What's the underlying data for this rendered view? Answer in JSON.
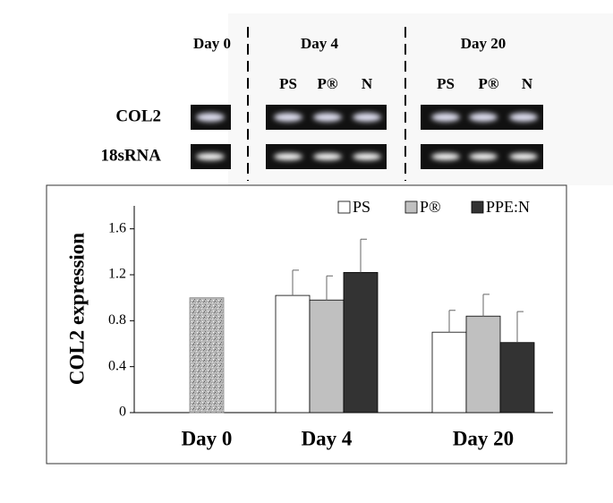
{
  "gel": {
    "groups": [
      "Day 0",
      "Day 4",
      "Day 20"
    ],
    "lane_labels": [
      "PS",
      "P®",
      "N",
      "PS",
      "P®",
      "N"
    ],
    "rows": [
      "COL2",
      "18sRNA"
    ]
  },
  "chart_data": {
    "type": "bar",
    "ylabel": "COL2 expression",
    "categories": [
      "Day 0",
      "Day 4",
      "Day 20"
    ],
    "control_values": [
      1.0,
      null,
      null
    ],
    "series": [
      {
        "name": "PS",
        "color": "#ffffff",
        "values": [
          null,
          1.02,
          0.7
        ],
        "errors": [
          null,
          0.22,
          0.19
        ]
      },
      {
        "name": "P®",
        "color": "#c0c0c0",
        "values": [
          null,
          0.98,
          0.84
        ],
        "errors": [
          null,
          0.21,
          0.19
        ]
      },
      {
        "name": "PPE:N",
        "color": "#333333",
        "values": [
          null,
          1.22,
          0.61
        ],
        "errors": [
          null,
          0.29,
          0.27
        ]
      }
    ],
    "ylim": [
      0,
      1.8
    ],
    "yticks": [
      0,
      0.4,
      0.8,
      1.2,
      1.6
    ],
    "grid": false
  }
}
